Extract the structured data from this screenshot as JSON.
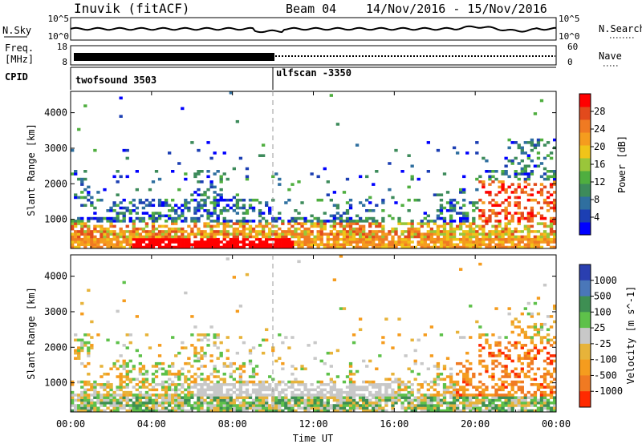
{
  "header": {
    "title": "Inuvik (fitACF)",
    "beam": "Beam 04",
    "date_range": "14/Nov/2016 - 15/Nov/2016"
  },
  "strips": {
    "nsky_label": "N.Sky",
    "nsky_ticks": [
      "10^5",
      "10^0"
    ],
    "nsearch_label": "N.Search",
    "nsearch_ticks": [
      "10^5",
      "10^0"
    ],
    "freq_label_1": "Freq.",
    "freq_label_2": "[MHz]",
    "freq_ticks": [
      "18",
      "8"
    ],
    "nave_label": "Nave",
    "nave_ticks": [
      "60",
      "0"
    ],
    "cpid_label": "CPID",
    "cpid_programs": [
      {
        "name": "twofsound 3503",
        "start_hour": 0
      },
      {
        "name": "ulfscan -3350",
        "start_hour": 10
      }
    ]
  },
  "colors": {
    "power": [
      "#0000ff",
      "#1c3fb3",
      "#2f6f9f",
      "#3d8b5b",
      "#4fae3f",
      "#9ac63a",
      "#f0c419",
      "#f59c1e",
      "#f07a22",
      "#e24a1c",
      "#ff0000"
    ],
    "velocity": [
      "#2a3fb0",
      "#4a77b9",
      "#3e8f53",
      "#5ec14a",
      "#c8c8c8",
      "#e7b33a",
      "#f59c1e",
      "#f07a22",
      "#ff2a00"
    ]
  },
  "chart_data": [
    {
      "type": "heatmap",
      "name": "power",
      "ylabel": "Slant Range [km]",
      "yticks": [
        "1000",
        "2000",
        "3000",
        "4000"
      ],
      "ylim": [
        180,
        4600
      ],
      "xlim": [
        0,
        24
      ],
      "colorbar_label": "Power [dB]",
      "colorbar_ticks": [
        "4",
        "8",
        "12",
        "16",
        "20",
        "24",
        "28"
      ],
      "colorbar_range": [
        0,
        32
      ]
    },
    {
      "type": "heatmap",
      "name": "velocity",
      "ylabel": "Slant Range [km]",
      "yticks": [
        "1000",
        "2000",
        "3000",
        "4000"
      ],
      "ylim": [
        180,
        4600
      ],
      "xlim": [
        0,
        24
      ],
      "colorbar_label": "Velocity [m s^-1]",
      "colorbar_ticks": [
        "1000",
        "500",
        "100",
        "25",
        "-25",
        "-100",
        "-500",
        "-1000"
      ]
    }
  ],
  "xaxis": {
    "label": "Time UT",
    "ticks": [
      "00:00",
      "04:00",
      "08:00",
      "12:00",
      "16:00",
      "20:00",
      "00:00"
    ]
  }
}
